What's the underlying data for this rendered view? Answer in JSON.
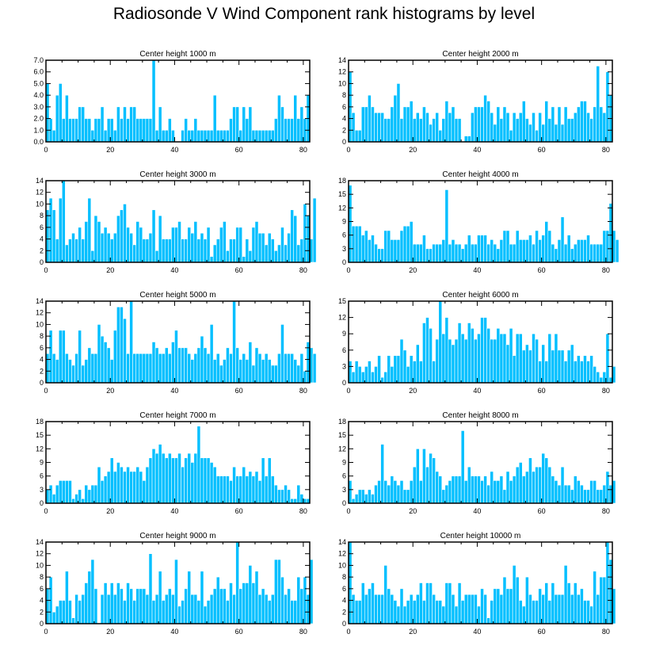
{
  "title": "Radiosonde V Wind Component rank histograms by level",
  "chart_data": [
    {
      "type": "bar",
      "title": "Center height 1000 m",
      "xlim": [
        0,
        82
      ],
      "xticks": [
        0,
        20,
        40,
        60,
        80
      ],
      "ylim": [
        0,
        7
      ],
      "yticks": [
        "0.0",
        "1.0",
        "2.0",
        "3.0",
        "4.0",
        "5.0",
        "6.0",
        "7.0"
      ],
      "values": [
        5,
        2,
        1,
        4,
        5,
        2,
        4,
        2,
        2,
        2,
        3,
        3,
        2,
        2,
        1,
        2,
        2,
        3,
        1,
        2,
        2,
        1,
        3,
        2,
        3,
        2,
        3,
        3,
        2,
        2,
        2,
        2,
        2,
        7,
        1,
        3,
        1,
        1,
        2,
        1,
        0,
        0,
        1,
        2,
        1,
        1,
        2,
        1,
        1,
        1,
        1,
        1,
        4,
        1,
        1,
        1,
        1,
        2,
        3,
        3,
        1,
        3,
        2,
        3,
        1,
        1,
        1,
        1,
        1,
        1,
        1,
        2,
        4,
        3,
        2,
        2,
        2,
        4,
        2,
        3,
        2,
        4
      ]
    },
    {
      "type": "bar",
      "title": "Center height 2000 m",
      "xlim": [
        0,
        82
      ],
      "xticks": [
        0,
        20,
        40,
        60,
        80
      ],
      "ylim": [
        0,
        14
      ],
      "yticks": [
        "0",
        "2",
        "4",
        "6",
        "8",
        "10",
        "12",
        "14"
      ],
      "values": [
        12,
        5,
        2,
        2,
        6,
        6,
        8,
        6,
        5,
        5,
        5,
        4,
        4,
        6,
        8,
        10,
        4,
        6,
        6,
        7,
        4,
        5,
        4,
        6,
        5,
        3,
        4,
        5,
        2,
        4,
        7,
        5,
        6,
        4,
        4,
        0,
        1,
        1,
        5,
        6,
        6,
        6,
        8,
        7,
        5,
        3,
        6,
        4,
        6,
        5,
        2,
        5,
        4,
        5,
        7,
        4,
        3,
        5,
        2,
        5,
        3,
        7,
        4,
        6,
        3,
        6,
        3,
        6,
        4,
        4,
        5,
        6,
        7,
        7,
        5,
        4,
        6,
        13,
        6,
        5,
        12,
        8
      ]
    },
    {
      "type": "bar",
      "title": "Center height 3000 m",
      "xlim": [
        0,
        82
      ],
      "xticks": [
        0,
        20,
        40,
        60,
        80
      ],
      "ylim": [
        0,
        14
      ],
      "yticks": [
        "0",
        "2",
        "4",
        "6",
        "8",
        "10",
        "12",
        "14"
      ],
      "values": [
        9,
        11,
        9,
        4,
        11,
        14,
        3,
        4,
        5,
        4,
        6,
        4,
        7,
        11,
        2,
        8,
        7,
        5,
        6,
        5,
        4,
        5,
        8,
        9,
        10,
        6,
        5,
        3,
        7,
        6,
        4,
        4,
        5,
        9,
        2,
        8,
        4,
        4,
        4,
        6,
        6,
        7,
        4,
        4,
        6,
        5,
        7,
        4,
        5,
        4,
        6,
        1,
        3,
        4,
        6,
        7,
        2,
        4,
        4,
        6,
        6,
        1,
        4,
        2,
        6,
        7,
        5,
        5,
        3,
        5,
        4,
        2,
        3,
        6,
        3,
        5,
        9,
        8,
        3,
        4,
        10,
        8,
        4,
        11
      ]
    },
    {
      "type": "bar",
      "title": "Center height 4000 m",
      "xlim": [
        0,
        82
      ],
      "xticks": [
        0,
        20,
        40,
        60,
        80
      ],
      "ylim": [
        0,
        18
      ],
      "yticks": [
        "0",
        "3",
        "6",
        "9",
        "12",
        "15",
        "18"
      ],
      "values": [
        17,
        8,
        8,
        8,
        6,
        7,
        5,
        6,
        4,
        3,
        3,
        7,
        7,
        5,
        5,
        5,
        7,
        8,
        8,
        9,
        4,
        4,
        4,
        6,
        3,
        3,
        4,
        4,
        4,
        5,
        16,
        4,
        5,
        4,
        4,
        3,
        4,
        6,
        4,
        4,
        6,
        6,
        6,
        4,
        5,
        4,
        3,
        5,
        7,
        7,
        4,
        4,
        7,
        5,
        5,
        5,
        6,
        4,
        7,
        5,
        6,
        9,
        7,
        4,
        3,
        5,
        10,
        4,
        6,
        3,
        4,
        5,
        5,
        5,
        6,
        4,
        4,
        4,
        4,
        7,
        7,
        13,
        7,
        5
      ]
    },
    {
      "type": "bar",
      "title": "Center height 5000 m",
      "xlim": [
        0,
        82
      ],
      "xticks": [
        0,
        20,
        40,
        60,
        80
      ],
      "ylim": [
        0,
        14
      ],
      "yticks": [
        "0",
        "2",
        "4",
        "6",
        "8",
        "10",
        "12",
        "14"
      ],
      "values": [
        5,
        9,
        5,
        4,
        9,
        9,
        5,
        4,
        3,
        5,
        9,
        3,
        4,
        6,
        5,
        5,
        10,
        8,
        7,
        6,
        4,
        9,
        13,
        13,
        11,
        5,
        14,
        5,
        5,
        5,
        5,
        5,
        5,
        7,
        6,
        5,
        5,
        6,
        5,
        7,
        9,
        6,
        6,
        6,
        5,
        4,
        5,
        6,
        8,
        6,
        5,
        10,
        4,
        5,
        3,
        4,
        6,
        5,
        14,
        6,
        4,
        5,
        4,
        7,
        3,
        6,
        5,
        4,
        5,
        4,
        3,
        3,
        5,
        10,
        5,
        5,
        5,
        4,
        3,
        5,
        2,
        7,
        6,
        5
      ]
    },
    {
      "type": "bar",
      "title": "Center height 6000 m",
      "xlim": [
        0,
        82
      ],
      "xticks": [
        0,
        20,
        40,
        60,
        80
      ],
      "ylim": [
        0,
        15
      ],
      "yticks": [
        "0",
        "3",
        "6",
        "9",
        "12",
        "15"
      ],
      "values": [
        4,
        2,
        4,
        3,
        2,
        3,
        4,
        2,
        3,
        5,
        1,
        2,
        5,
        3,
        5,
        5,
        8,
        6,
        3,
        5,
        4,
        7,
        4,
        11,
        12,
        10,
        4,
        8,
        15,
        9,
        12,
        8,
        7,
        8,
        11,
        9,
        8,
        11,
        10,
        8,
        9,
        12,
        12,
        10,
        8,
        8,
        10,
        9,
        9,
        7,
        10,
        5,
        9,
        9,
        6,
        7,
        6,
        9,
        8,
        4,
        7,
        4,
        9,
        6,
        9,
        6,
        6,
        4,
        6,
        7,
        4,
        5,
        4,
        5,
        4,
        5,
        3,
        2,
        1,
        2,
        9,
        1,
        3
      ]
    },
    {
      "type": "bar",
      "title": "Center height 7000 m",
      "xlim": [
        0,
        82
      ],
      "xticks": [
        0,
        20,
        40,
        60,
        80
      ],
      "ylim": [
        0,
        18
      ],
      "yticks": [
        "0",
        "3",
        "6",
        "9",
        "12",
        "15",
        "18"
      ],
      "values": [
        3,
        4,
        2,
        4,
        5,
        5,
        5,
        5,
        1,
        2,
        3,
        1,
        4,
        3,
        4,
        4,
        8,
        5,
        6,
        7,
        10,
        7,
        9,
        8,
        7,
        8,
        7,
        7,
        8,
        7,
        5,
        8,
        10,
        12,
        11,
        13,
        11,
        10,
        11,
        10,
        10,
        11,
        8,
        10,
        11,
        9,
        11,
        17,
        10,
        10,
        10,
        9,
        8,
        6,
        6,
        6,
        6,
        5,
        8,
        6,
        6,
        8,
        6,
        7,
        6,
        7,
        5,
        10,
        6,
        10,
        6,
        4,
        3,
        3,
        4,
        3,
        1,
        1,
        4,
        2,
        1,
        1
      ]
    },
    {
      "type": "bar",
      "title": "Center height 8000 m",
      "xlim": [
        0,
        82
      ],
      "xticks": [
        0,
        20,
        40,
        60,
        80
      ],
      "ylim": [
        0,
        18
      ],
      "yticks": [
        "0",
        "3",
        "6",
        "9",
        "12",
        "15",
        "18"
      ],
      "values": [
        5,
        1,
        2,
        3,
        3,
        2,
        3,
        2,
        4,
        5,
        13,
        5,
        4,
        6,
        5,
        4,
        5,
        3,
        3,
        5,
        8,
        12,
        5,
        12,
        8,
        11,
        10,
        7,
        6,
        3,
        4,
        5,
        6,
        6,
        6,
        16,
        5,
        8,
        6,
        6,
        6,
        5,
        6,
        4,
        7,
        5,
        5,
        6,
        3,
        7,
        5,
        6,
        8,
        9,
        6,
        7,
        10,
        7,
        8,
        8,
        11,
        10,
        8,
        6,
        5,
        4,
        8,
        4,
        4,
        3,
        6,
        5,
        4,
        3,
        3,
        5,
        5,
        3,
        3,
        4,
        7,
        4,
        5
      ]
    },
    {
      "type": "bar",
      "title": "Center height 9000 m",
      "xlim": [
        0,
        82
      ],
      "xticks": [
        0,
        20,
        40,
        60,
        80
      ],
      "ylim": [
        0,
        14
      ],
      "yticks": [
        "0",
        "2",
        "4",
        "6",
        "8",
        "10",
        "12",
        "14"
      ],
      "values": [
        6,
        8,
        2,
        3,
        4,
        4,
        9,
        4,
        1,
        5,
        4,
        5,
        7,
        9,
        11,
        6,
        0,
        5,
        7,
        5,
        7,
        5,
        7,
        6,
        4,
        7,
        6,
        4,
        6,
        6,
        6,
        5,
        12,
        4,
        5,
        9,
        4,
        5,
        6,
        5,
        11,
        3,
        4,
        6,
        9,
        5,
        5,
        4,
        9,
        3,
        4,
        5,
        6,
        8,
        6,
        6,
        4,
        7,
        5,
        14,
        6,
        7,
        7,
        10,
        7,
        9,
        5,
        6,
        5,
        4,
        5,
        11,
        11,
        8,
        5,
        6,
        4,
        4,
        8,
        6,
        8,
        5,
        11
      ]
    },
    {
      "type": "bar",
      "title": "Center height 10000 m",
      "xlim": [
        0,
        82
      ],
      "xticks": [
        0,
        20,
        40,
        60,
        80
      ],
      "ylim": [
        0,
        14
      ],
      "yticks": [
        "0",
        "2",
        "4",
        "6",
        "8",
        "10",
        "12",
        "14"
      ],
      "values": [
        14,
        5,
        4,
        4,
        7,
        5,
        6,
        7,
        5,
        5,
        5,
        10,
        6,
        5,
        4,
        3,
        6,
        3,
        4,
        5,
        4,
        5,
        7,
        4,
        7,
        7,
        5,
        4,
        4,
        3,
        7,
        7,
        5,
        3,
        7,
        4,
        5,
        5,
        5,
        5,
        3,
        6,
        5,
        1,
        4,
        6,
        6,
        5,
        8,
        6,
        6,
        10,
        8,
        4,
        3,
        8,
        5,
        4,
        4,
        6,
        5,
        7,
        4,
        7,
        5,
        5,
        5,
        10,
        7,
        5,
        7,
        5,
        6,
        4,
        4,
        3,
        9,
        5,
        8,
        8,
        14,
        11,
        6
      ]
    }
  ]
}
